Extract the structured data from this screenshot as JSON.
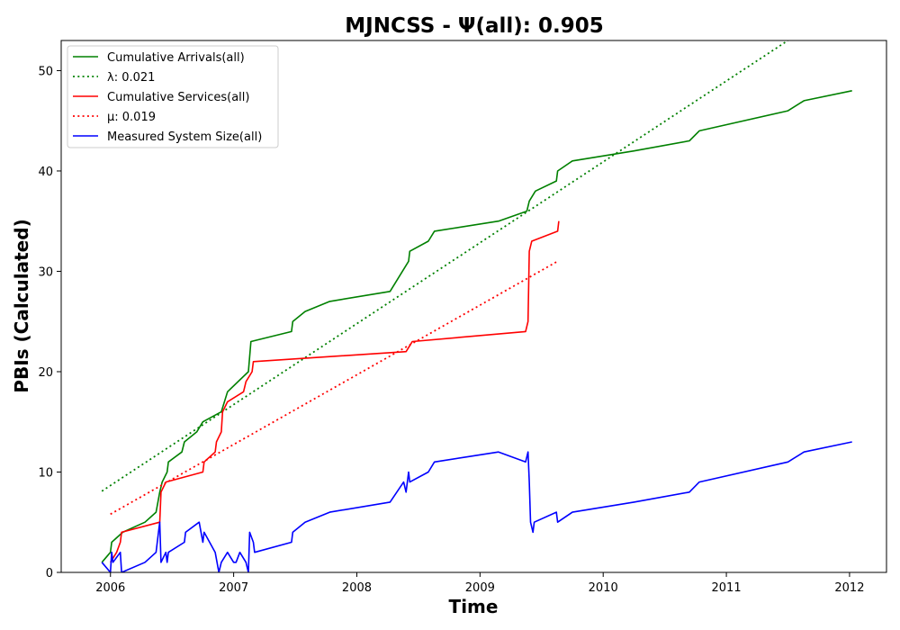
{
  "chart_data": {
    "type": "line",
    "title": "MJNCSS -  Ψ(all): 0.905",
    "xlabel": "Time",
    "ylabel": "PBIs (Calculated)",
    "xlim": [
      2005.6,
      2012.3
    ],
    "ylim": [
      0,
      53
    ],
    "x_ticks": [
      2006,
      2007,
      2008,
      2009,
      2010,
      2011,
      2012
    ],
    "y_ticks": [
      0,
      10,
      20,
      30,
      40,
      50
    ],
    "legend_position": "upper-left",
    "series": [
      {
        "name": "Cumulative Arrivals(all)",
        "color": "#008000",
        "style": "solid",
        "points": [
          [
            2005.93,
            1
          ],
          [
            2006.0,
            2
          ],
          [
            2006.01,
            3
          ],
          [
            2006.1,
            4
          ],
          [
            2006.28,
            5
          ],
          [
            2006.37,
            6
          ],
          [
            2006.4,
            8
          ],
          [
            2006.42,
            9
          ],
          [
            2006.46,
            10
          ],
          [
            2006.47,
            11
          ],
          [
            2006.58,
            12
          ],
          [
            2006.6,
            13
          ],
          [
            2006.7,
            14
          ],
          [
            2006.75,
            15
          ],
          [
            2006.9,
            16
          ],
          [
            2006.95,
            18
          ],
          [
            2007.12,
            20
          ],
          [
            2007.14,
            23
          ],
          [
            2007.47,
            24
          ],
          [
            2007.48,
            25
          ],
          [
            2007.58,
            26
          ],
          [
            2007.78,
            27
          ],
          [
            2008.27,
            28
          ],
          [
            2008.42,
            31
          ],
          [
            2008.43,
            32
          ],
          [
            2008.58,
            33
          ],
          [
            2008.63,
            34
          ],
          [
            2009.15,
            35
          ],
          [
            2009.38,
            36
          ],
          [
            2009.4,
            37
          ],
          [
            2009.45,
            38
          ],
          [
            2009.62,
            39
          ],
          [
            2009.63,
            40
          ],
          [
            2009.75,
            41
          ],
          [
            2010.25,
            42
          ],
          [
            2010.7,
            43
          ],
          [
            2010.78,
            44
          ],
          [
            2011.5,
            46
          ],
          [
            2011.63,
            47
          ],
          [
            2012.02,
            48
          ]
        ]
      },
      {
        "name": "λ: 0.021",
        "color": "#008000",
        "style": "dotted",
        "points": [
          [
            2005.93,
            8.1
          ],
          [
            2011.5,
            53.0
          ]
        ]
      },
      {
        "name": "Cumulative Services(all)",
        "color": "#ff0000",
        "style": "solid",
        "points": [
          [
            2006.0,
            1
          ],
          [
            2006.05,
            2
          ],
          [
            2006.08,
            3
          ],
          [
            2006.09,
            4
          ],
          [
            2006.4,
            5
          ],
          [
            2006.41,
            8
          ],
          [
            2006.45,
            9
          ],
          [
            2006.75,
            10
          ],
          [
            2006.76,
            11
          ],
          [
            2006.85,
            12
          ],
          [
            2006.86,
            13
          ],
          [
            2006.9,
            14
          ],
          [
            2006.91,
            16
          ],
          [
            2006.95,
            17
          ],
          [
            2007.08,
            18
          ],
          [
            2007.1,
            19
          ],
          [
            2007.15,
            20
          ],
          [
            2007.16,
            21
          ],
          [
            2008.4,
            22
          ],
          [
            2008.45,
            23
          ],
          [
            2009.37,
            24
          ],
          [
            2009.39,
            25
          ],
          [
            2009.4,
            32
          ],
          [
            2009.42,
            33
          ],
          [
            2009.63,
            34
          ],
          [
            2009.64,
            35
          ]
        ]
      },
      {
        "name": "μ: 0.019",
        "color": "#ff0000",
        "style": "dotted",
        "points": [
          [
            2006.0,
            5.8
          ],
          [
            2009.63,
            31.0
          ]
        ]
      },
      {
        "name": "Measured System Size(all)",
        "color": "#0000ff",
        "style": "solid",
        "points": [
          [
            2005.93,
            1
          ],
          [
            2006.0,
            0
          ],
          [
            2006.01,
            2
          ],
          [
            2006.02,
            1
          ],
          [
            2006.08,
            2
          ],
          [
            2006.09,
            0
          ],
          [
            2006.28,
            1
          ],
          [
            2006.37,
            2
          ],
          [
            2006.39,
            4
          ],
          [
            2006.4,
            5
          ],
          [
            2006.41,
            1
          ],
          [
            2006.45,
            2
          ],
          [
            2006.46,
            1
          ],
          [
            2006.47,
            2
          ],
          [
            2006.6,
            3
          ],
          [
            2006.61,
            4
          ],
          [
            2006.72,
            5
          ],
          [
            2006.75,
            3
          ],
          [
            2006.76,
            4
          ],
          [
            2006.85,
            2
          ],
          [
            2006.88,
            0
          ],
          [
            2006.9,
            1
          ],
          [
            2006.95,
            2
          ],
          [
            2007.0,
            1
          ],
          [
            2007.02,
            1
          ],
          [
            2007.05,
            2
          ],
          [
            2007.1,
            1
          ],
          [
            2007.12,
            0
          ],
          [
            2007.13,
            4
          ],
          [
            2007.16,
            3
          ],
          [
            2007.17,
            2
          ],
          [
            2007.47,
            3
          ],
          [
            2007.48,
            4
          ],
          [
            2007.58,
            5
          ],
          [
            2007.78,
            6
          ],
          [
            2008.27,
            7
          ],
          [
            2008.38,
            9
          ],
          [
            2008.4,
            8
          ],
          [
            2008.42,
            10
          ],
          [
            2008.43,
            9
          ],
          [
            2008.58,
            10
          ],
          [
            2008.63,
            11
          ],
          [
            2009.15,
            12
          ],
          [
            2009.37,
            11
          ],
          [
            2009.39,
            12
          ],
          [
            2009.4,
            9
          ],
          [
            2009.41,
            5
          ],
          [
            2009.43,
            4
          ],
          [
            2009.44,
            5
          ],
          [
            2009.62,
            6
          ],
          [
            2009.63,
            5
          ],
          [
            2009.75,
            6
          ],
          [
            2010.25,
            7
          ],
          [
            2010.7,
            8
          ],
          [
            2010.78,
            9
          ],
          [
            2011.5,
            11
          ],
          [
            2011.63,
            12
          ],
          [
            2012.02,
            13
          ]
        ]
      }
    ]
  }
}
